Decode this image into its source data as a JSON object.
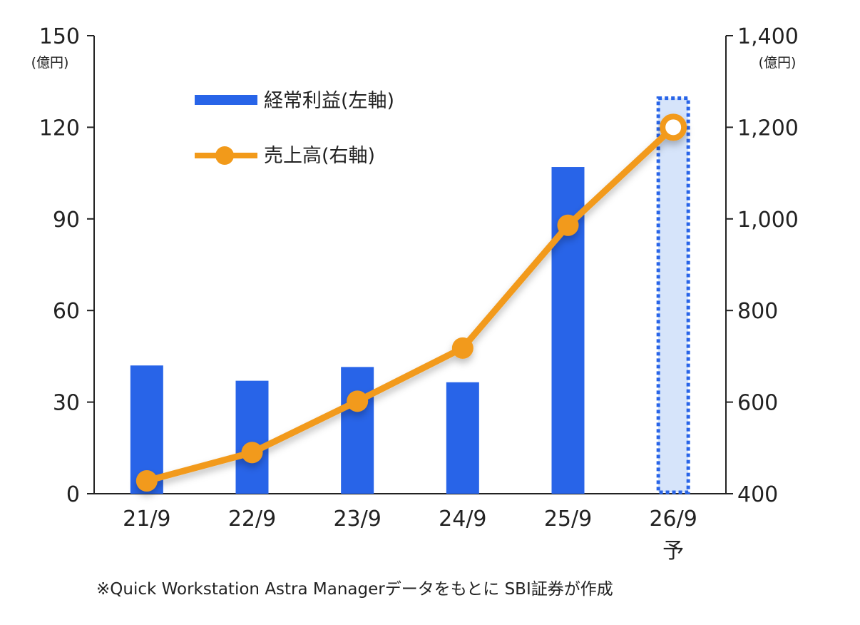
{
  "chart_data": {
    "type": "bar+line",
    "categories": [
      "21/9",
      "22/9",
      "23/9",
      "24/9",
      "25/9",
      "26/9"
    ],
    "category_sublabels": [
      "",
      "",
      "",
      "",
      "",
      "予"
    ],
    "series": [
      {
        "name": "経常利益(左軸)",
        "type": "bar",
        "axis": "left",
        "values": [
          42,
          37,
          41.5,
          36.5,
          107,
          130
        ],
        "forecast_flags": [
          false,
          false,
          false,
          false,
          false,
          true
        ],
        "color": "#2864E8",
        "forecast_fill": "#D6E4FA",
        "forecast_border": "#2864E8"
      },
      {
        "name": "売上高(右軸)",
        "type": "line",
        "axis": "right",
        "values": [
          428,
          490,
          602,
          718,
          986,
          1200
        ],
        "color": "#F29A1A"
      }
    ],
    "left_axis": {
      "ylim": [
        0,
        150
      ],
      "ticks": [
        0,
        30,
        60,
        90,
        120,
        150
      ],
      "tick_labels": [
        "0",
        "30",
        "60",
        "90",
        "120",
        "150"
      ],
      "unit": "(億円)"
    },
    "right_axis": {
      "ylim": [
        400,
        1400
      ],
      "ticks": [
        400,
        600,
        800,
        1000,
        1200,
        1400
      ],
      "tick_labels": [
        "400",
        "600",
        "800",
        "1,000",
        "1,200",
        "1,400"
      ],
      "unit": "(億円)"
    },
    "legend_position": "top-left",
    "grid": false
  },
  "note": "※Quick Workstation Astra Managerデータをもとに SBI証券が作成"
}
